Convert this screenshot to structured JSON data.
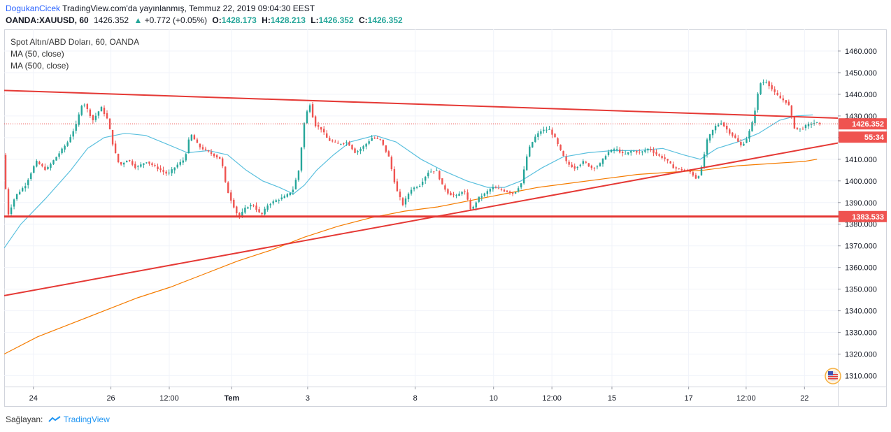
{
  "header": {
    "author": "DogukanCicek",
    "published_text": "TradingView.com'da yayınlanmış, Temmuz 22, 2019 09:04:30 EEST",
    "symbol": "OANDA:XAUUSD, 60",
    "last": "1426.352",
    "change_arrow": "▲",
    "change": "+0.772 (+0.05%)",
    "o_label": "O:",
    "o_value": "1428.173",
    "h_label": "H:",
    "h_value": "1428.213",
    "l_label": "L:",
    "l_value": "1426.352",
    "c_label": "C:",
    "c_value": "1426.352"
  },
  "legend": {
    "title": "Spot Altın/ABD Doları, 60, OANDA",
    "ma1": "MA (50, close)",
    "ma2": "MA (500, close)"
  },
  "footer": {
    "provider_label": "Sağlayan:",
    "provider_name": "TradingView"
  },
  "colors": {
    "up": "#26a69a",
    "down": "#ef5350",
    "ma50": "#5bc0de",
    "ma500": "#f57c00",
    "trendline": "#e53935",
    "price_label_bg": "#ef5350"
  },
  "chart_data": {
    "type": "candlestick",
    "ylim": [
      1305,
      1470
    ],
    "y_ticks": [
      "1460.000",
      "1450.000",
      "1440.000",
      "1430.000",
      "1420.000",
      "1410.000",
      "1400.000",
      "1390.000",
      "1380.000",
      "1370.000",
      "1360.000",
      "1350.000",
      "1340.000",
      "1330.000",
      "1320.000",
      "1310.000"
    ],
    "x_ticks": [
      {
        "label": "24",
        "t": 0.035
      },
      {
        "label": "26",
        "t": 0.128
      },
      {
        "label": "12:00",
        "t": 0.198
      },
      {
        "label": "Tem",
        "t": 0.273
      },
      {
        "label": "3",
        "t": 0.364
      },
      {
        "label": "8",
        "t": 0.493
      },
      {
        "label": "10",
        "t": 0.587
      },
      {
        "label": "12:00",
        "t": 0.657
      },
      {
        "label": "15",
        "t": 0.729
      },
      {
        "label": "17",
        "t": 0.821
      },
      {
        "label": "12:00",
        "t": 0.89
      },
      {
        "label": "22",
        "t": 0.96
      }
    ],
    "price_path": [
      [
        0.0,
        1412
      ],
      [
        0.006,
        1384
      ],
      [
        0.015,
        1393
      ],
      [
        0.027,
        1398
      ],
      [
        0.04,
        1409
      ],
      [
        0.052,
        1405
      ],
      [
        0.064,
        1411
      ],
      [
        0.078,
        1418
      ],
      [
        0.088,
        1426
      ],
      [
        0.096,
        1437
      ],
      [
        0.108,
        1428
      ],
      [
        0.118,
        1434
      ],
      [
        0.126,
        1428
      ],
      [
        0.133,
        1415
      ],
      [
        0.14,
        1407
      ],
      [
        0.15,
        1410
      ],
      [
        0.16,
        1406
      ],
      [
        0.172,
        1409
      ],
      [
        0.185,
        1406
      ],
      [
        0.198,
        1403
      ],
      [
        0.208,
        1407
      ],
      [
        0.218,
        1410
      ],
      [
        0.225,
        1422
      ],
      [
        0.235,
        1416
      ],
      [
        0.248,
        1413
      ],
      [
        0.262,
        1410
      ],
      [
        0.268,
        1397
      ],
      [
        0.275,
        1390
      ],
      [
        0.283,
        1383
      ],
      [
        0.292,
        1388
      ],
      [
        0.3,
        1389
      ],
      [
        0.31,
        1384
      ],
      [
        0.318,
        1389
      ],
      [
        0.328,
        1391
      ],
      [
        0.34,
        1393
      ],
      [
        0.348,
        1396
      ],
      [
        0.355,
        1405
      ],
      [
        0.362,
        1428
      ],
      [
        0.368,
        1436
      ],
      [
        0.374,
        1426
      ],
      [
        0.382,
        1424
      ],
      [
        0.39,
        1419
      ],
      [
        0.402,
        1417
      ],
      [
        0.413,
        1418
      ],
      [
        0.423,
        1413
      ],
      [
        0.433,
        1416
      ],
      [
        0.443,
        1420
      ],
      [
        0.453,
        1419
      ],
      [
        0.463,
        1411
      ],
      [
        0.472,
        1396
      ],
      [
        0.48,
        1389
      ],
      [
        0.489,
        1396
      ],
      [
        0.5,
        1398
      ],
      [
        0.51,
        1404
      ],
      [
        0.52,
        1405
      ],
      [
        0.527,
        1398
      ],
      [
        0.535,
        1394
      ],
      [
        0.545,
        1393
      ],
      [
        0.553,
        1396
      ],
      [
        0.562,
        1386
      ],
      [
        0.57,
        1392
      ],
      [
        0.578,
        1394
      ],
      [
        0.587,
        1397
      ],
      [
        0.597,
        1396
      ],
      [
        0.606,
        1395
      ],
      [
        0.613,
        1394
      ],
      [
        0.622,
        1399
      ],
      [
        0.63,
        1414
      ],
      [
        0.638,
        1420
      ],
      [
        0.645,
        1423
      ],
      [
        0.655,
        1424
      ],
      [
        0.662,
        1420
      ],
      [
        0.67,
        1413
      ],
      [
        0.677,
        1408
      ],
      [
        0.686,
        1406
      ],
      [
        0.697,
        1409
      ],
      [
        0.706,
        1406
      ],
      [
        0.715,
        1407
      ],
      [
        0.725,
        1413
      ],
      [
        0.735,
        1415
      ],
      [
        0.745,
        1412
      ],
      [
        0.755,
        1414
      ],
      [
        0.765,
        1413
      ],
      [
        0.775,
        1415
      ],
      [
        0.785,
        1412
      ],
      [
        0.795,
        1410
      ],
      [
        0.805,
        1406
      ],
      [
        0.816,
        1405
      ],
      [
        0.825,
        1404
      ],
      [
        0.832,
        1401
      ],
      [
        0.837,
        1404
      ],
      [
        0.845,
        1419
      ],
      [
        0.854,
        1425
      ],
      [
        0.862,
        1427
      ],
      [
        0.87,
        1423
      ],
      [
        0.878,
        1420
      ],
      [
        0.886,
        1416
      ],
      [
        0.893,
        1420
      ],
      [
        0.9,
        1428
      ],
      [
        0.908,
        1445
      ],
      [
        0.916,
        1446
      ],
      [
        0.925,
        1441
      ],
      [
        0.933,
        1438
      ],
      [
        0.942,
        1436
      ],
      [
        0.95,
        1424
      ],
      [
        0.958,
        1424
      ],
      [
        0.966,
        1426
      ],
      [
        0.975,
        1427
      ],
      [
        0.98,
        1426.352
      ]
    ],
    "ma50_path": [
      [
        0.0,
        1369
      ],
      [
        0.02,
        1380
      ],
      [
        0.05,
        1392
      ],
      [
        0.08,
        1405
      ],
      [
        0.1,
        1415
      ],
      [
        0.12,
        1420
      ],
      [
        0.145,
        1422
      ],
      [
        0.17,
        1421
      ],
      [
        0.195,
        1417
      ],
      [
        0.22,
        1413
      ],
      [
        0.245,
        1414
      ],
      [
        0.268,
        1412
      ],
      [
        0.29,
        1405
      ],
      [
        0.31,
        1400
      ],
      [
        0.33,
        1397
      ],
      [
        0.347,
        1394
      ],
      [
        0.36,
        1398
      ],
      [
        0.375,
        1405
      ],
      [
        0.395,
        1412
      ],
      [
        0.415,
        1418
      ],
      [
        0.445,
        1421
      ],
      [
        0.47,
        1418
      ],
      [
        0.5,
        1410
      ],
      [
        0.525,
        1405
      ],
      [
        0.555,
        1400
      ],
      [
        0.58,
        1397
      ],
      [
        0.6,
        1397
      ],
      [
        0.62,
        1400
      ],
      [
        0.645,
        1406
      ],
      [
        0.67,
        1411
      ],
      [
        0.7,
        1413
      ],
      [
        0.73,
        1414
      ],
      [
        0.76,
        1414
      ],
      [
        0.79,
        1415
      ],
      [
        0.815,
        1412
      ],
      [
        0.835,
        1410
      ],
      [
        0.855,
        1415
      ],
      [
        0.88,
        1418
      ],
      [
        0.905,
        1422
      ],
      [
        0.93,
        1428
      ],
      [
        0.95,
        1430
      ],
      [
        0.97,
        1430.5
      ]
    ],
    "ma500_path": [
      [
        0.0,
        1320
      ],
      [
        0.04,
        1328
      ],
      [
        0.08,
        1334
      ],
      [
        0.12,
        1340
      ],
      [
        0.16,
        1346
      ],
      [
        0.2,
        1351
      ],
      [
        0.24,
        1357
      ],
      [
        0.28,
        1363
      ],
      [
        0.32,
        1368
      ],
      [
        0.36,
        1374
      ],
      [
        0.4,
        1379
      ],
      [
        0.44,
        1383
      ],
      [
        0.48,
        1386
      ],
      [
        0.52,
        1388
      ],
      [
        0.56,
        1391
      ],
      [
        0.6,
        1394
      ],
      [
        0.64,
        1397
      ],
      [
        0.68,
        1399
      ],
      [
        0.72,
        1401
      ],
      [
        0.76,
        1403
      ],
      [
        0.8,
        1404
      ],
      [
        0.84,
        1405
      ],
      [
        0.88,
        1407
      ],
      [
        0.92,
        1408
      ],
      [
        0.96,
        1409
      ],
      [
        0.975,
        1410
      ]
    ],
    "trendlines": [
      {
        "name": "upper",
        "from": [
          0.0,
          1441.8
        ],
        "to": [
          1.0,
          1429.0
        ]
      },
      {
        "name": "lower",
        "from": [
          0.0,
          1347.0
        ],
        "to": [
          1.0,
          1417.5
        ]
      },
      {
        "name": "support",
        "from": [
          0.0,
          1383.533
        ],
        "to": [
          1.0,
          1383.533
        ]
      }
    ],
    "price_labels": [
      {
        "text": "1426.352",
        "value": 1426.352
      },
      {
        "text": "55:34",
        "value": 1422.0
      },
      {
        "text": "1383.533",
        "value": 1383.533
      }
    ]
  }
}
